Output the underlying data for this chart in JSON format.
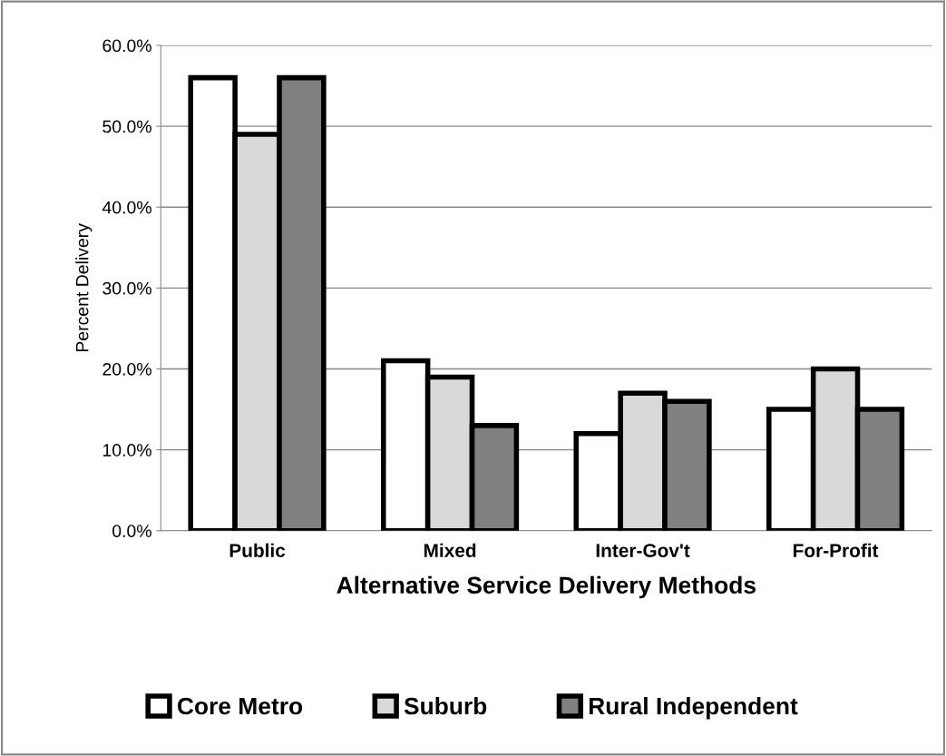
{
  "chart_data": {
    "type": "bar",
    "categories": [
      "Public",
      "Mixed",
      "Inter-Gov't",
      "For-Profit"
    ],
    "series": [
      {
        "name": "Core Metro",
        "color": "#ffffff",
        "values": [
          56,
          21,
          12,
          15
        ]
      },
      {
        "name": "Suburb",
        "color": "#d9d9d9",
        "values": [
          49,
          19,
          17,
          20
        ]
      },
      {
        "name": "Rural Independent",
        "color": "#808080",
        "values": [
          56,
          13,
          16,
          15
        ]
      }
    ],
    "xlabel": "Alternative Service Delivery Methods",
    "ylabel": "Percent Delivery",
    "ylim": [
      0,
      60
    ],
    "yticks": [
      {
        "value": 0,
        "label": "0.0%"
      },
      {
        "value": 10,
        "label": "10.0%"
      },
      {
        "value": 20,
        "label": "20.0%"
      },
      {
        "value": 30,
        "label": "30.0%"
      },
      {
        "value": 40,
        "label": "40.0%"
      },
      {
        "value": 50,
        "label": "50.0%"
      },
      {
        "value": 60,
        "label": "60.0%"
      }
    ],
    "grid": "y",
    "legend": "bottom"
  }
}
